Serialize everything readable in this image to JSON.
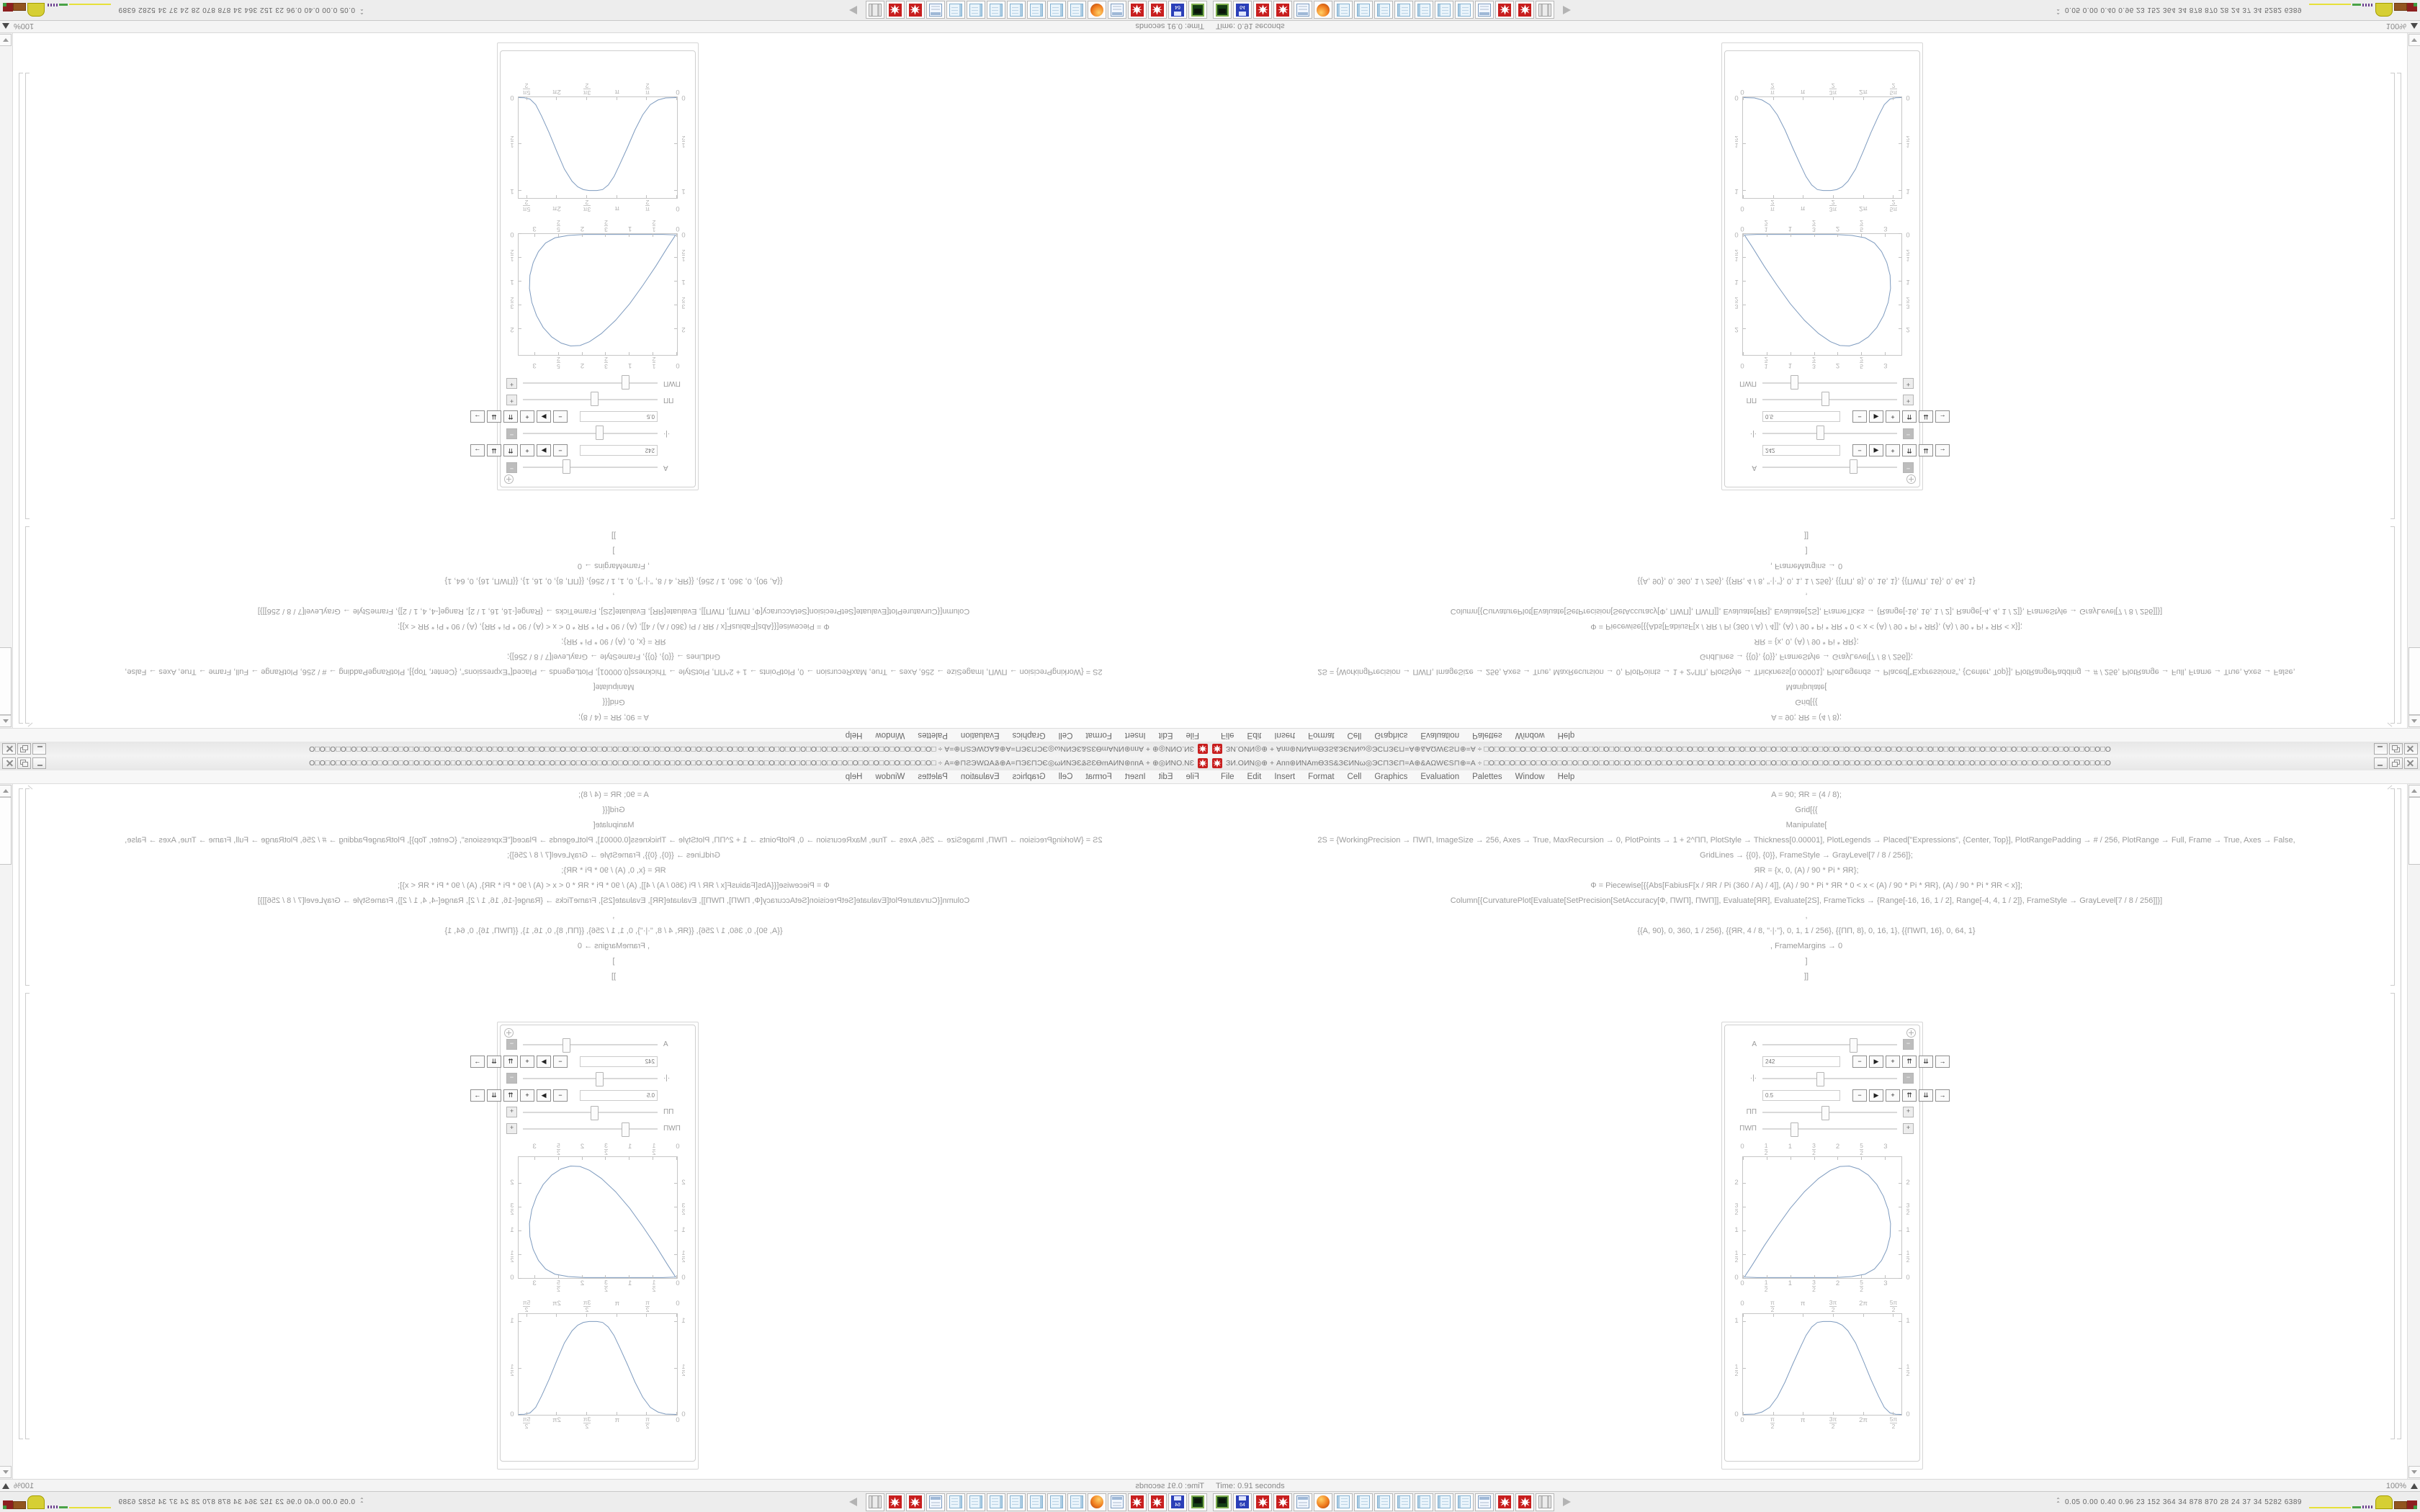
{
  "window": {
    "title": "ЗИ.ОИN◎⊕ + Апп⊛ИNАmѲЗS&ЗЄИNω◎ЭС⊓ЗЄ⊓=А⊕&АΩWЄS⊓⊕=А ÷ □O□O□O□O□O□O□O□O□O□O□O□O□O□O□O□O□O□O□O□O□O□O□O□O□O□O□O□O□O□O□O□O□O□O□O□O□O□O□O□O□O□O□O□O□O□O□O□O□O□O□O□O□O□O□O□O□O□O□O□O",
    "buttons": [
      "minimize",
      "restore",
      "close"
    ]
  },
  "menu": {
    "items": [
      "File",
      "Edit",
      "Insert",
      "Format",
      "Cell",
      "Graphics",
      "Evaluation",
      "Palettes",
      "Window",
      "Help"
    ]
  },
  "notebook": {
    "code_lines": [
      "A = 90; ЯR = (4 / 8);",
      "Grid[{{",
      "Manipulate[",
      "2S = {WorkingPrecision → ПWП, ImageSize → 256, Axes → True, MaxRecursion → 0, PlotPoints → 1 + 2^ПП, PlotStyle → Thickness[0.00001], PlotLegends → Placed[\"Expressions\", {Center, Top}], PlotRangePadding → # / 256, PlotRange → Full, Frame → True, Axes → False,",
      "GridLines → {{0}, {0}}, FrameStyle → GrayLevel[7 / 8 / 256]};",
      "ЯR = {x, 0, (A) / 90 * Pi * ЯR};",
      "Ф = Piecewise[{{Abs[FabiusF[x / ЯR / Pi (360 / A) / 4]], (A) / 90 * Pi * ЯR * 0 < x < (A) / 90 * Pi * ЯR}, (A) / 90 * Pi * ЯR < x}];",
      "Column[{CurvaturePlot[Evaluate[SetPrecision[SetAccuracy[Ф, ПWП], ПWП]], Evaluate[ЯR], Evaluate[2S], FrameTicks → {Range[-16, 16, 1 / 2], Range[-4, 4, 1 / 2]}, FrameStyle → GrayLevel[7 / 8 / 256]]}]",
      ",",
      "{{A, 90}, 0, 360, 1 / 256}, {{ЯR, 4 / 8, \"·|·\"}, 0, 1, 1 / 256}, {{ПП, 8}, 0, 16, 1}, {{ПWП, 16}, 0, 64, 1}",
      ", FrameMargins → 0",
      "]",
      "]]"
    ]
  },
  "manipulate": {
    "menu_icon": "plus-circle-icon",
    "player_buttons": [
      "−",
      "▶",
      "+",
      "⇈",
      "⇊",
      "→"
    ],
    "sliders": [
      {
        "label": "A",
        "percent": 67,
        "expanded": true,
        "value": "242"
      },
      {
        "label": "·|·",
        "percent": 42,
        "expanded": true,
        "value": "0.5"
      },
      {
        "label": "ПП",
        "percent": 46,
        "expanded": false,
        "value": ""
      },
      {
        "label": "ПWП",
        "percent": 23,
        "expanded": false,
        "value": ""
      }
    ]
  },
  "chart_data": [
    {
      "type": "line",
      "closed": true,
      "x_range": [
        0,
        3.35
      ],
      "y_range": [
        0,
        2.55
      ],
      "x_ticks": [
        {
          "label": "0",
          "pos": 0.0
        },
        {
          "label": "1/2",
          "pos": 0.149
        },
        {
          "label": "1",
          "pos": 0.299
        },
        {
          "label": "3/2",
          "pos": 0.448
        },
        {
          "label": "2",
          "pos": 0.597
        },
        {
          "label": "5/2",
          "pos": 0.746
        },
        {
          "label": "3",
          "pos": 0.896
        }
      ],
      "y_ticks": [
        {
          "label": "0",
          "pos": 0.0
        },
        {
          "label": "1/2",
          "pos": 0.196
        },
        {
          "label": "1",
          "pos": 0.392
        },
        {
          "label": "3/2",
          "pos": 0.588
        },
        {
          "label": "2",
          "pos": 0.784
        }
      ],
      "curve": [
        [
          0.03,
          0.02
        ],
        [
          0.2,
          0.28
        ],
        [
          0.45,
          0.68
        ],
        [
          0.72,
          1.08
        ],
        [
          1.0,
          1.47
        ],
        [
          1.3,
          1.82
        ],
        [
          1.6,
          2.1
        ],
        [
          1.85,
          2.27
        ],
        [
          2.05,
          2.35
        ],
        [
          2.25,
          2.36
        ],
        [
          2.45,
          2.3
        ],
        [
          2.65,
          2.17
        ],
        [
          2.83,
          1.97
        ],
        [
          2.97,
          1.72
        ],
        [
          3.07,
          1.44
        ],
        [
          3.12,
          1.15
        ],
        [
          3.11,
          0.87
        ],
        [
          3.04,
          0.6
        ],
        [
          2.93,
          0.37
        ],
        [
          2.78,
          0.19
        ],
        [
          2.58,
          0.08
        ],
        [
          2.3,
          0.03
        ],
        [
          1.95,
          0.01
        ],
        [
          1.55,
          0.01
        ],
        [
          1.1,
          0.01
        ],
        [
          0.65,
          0.01
        ],
        [
          0.3,
          0.01
        ],
        [
          0.03,
          0.02
        ]
      ]
    },
    {
      "type": "line",
      "closed": false,
      "x_range": [
        0,
        8.3
      ],
      "y_range": [
        0,
        1.08
      ],
      "x_ticks": [
        {
          "label": "0",
          "pos": 0.0
        },
        {
          "label": "π/2",
          "pos": 0.189
        },
        {
          "label": "π",
          "pos": 0.379
        },
        {
          "label": "3π/2",
          "pos": 0.568
        },
        {
          "label": "2π",
          "pos": 0.757
        },
        {
          "label": "5π/2",
          "pos": 0.946
        }
      ],
      "y_ticks": [
        {
          "label": "0",
          "pos": 0.0
        },
        {
          "label": "1/2",
          "pos": 0.463
        },
        {
          "label": "1",
          "pos": 0.926
        }
      ],
      "curve": [
        [
          0,
          0.004
        ],
        [
          0.6,
          0.008
        ],
        [
          1.0,
          0.03
        ],
        [
          1.4,
          0.08
        ],
        [
          1.8,
          0.19
        ],
        [
          2.2,
          0.35
        ],
        [
          2.6,
          0.54
        ],
        [
          3.0,
          0.72
        ],
        [
          3.3,
          0.85
        ],
        [
          3.6,
          0.94
        ],
        [
          3.9,
          0.99
        ],
        [
          4.2,
          1.0
        ],
        [
          4.6,
          1.0
        ],
        [
          4.9,
          0.99
        ],
        [
          5.2,
          0.96
        ],
        [
          5.5,
          0.9
        ],
        [
          5.9,
          0.77
        ],
        [
          6.3,
          0.58
        ],
        [
          6.7,
          0.38
        ],
        [
          7.1,
          0.2
        ],
        [
          7.4,
          0.08
        ],
        [
          7.7,
          0.02
        ],
        [
          8.0,
          0.006
        ],
        [
          8.3,
          0.004
        ]
      ]
    }
  ],
  "colors": {
    "curve_stroke": "#7e9bbf",
    "spikey_red": "#c81e1e",
    "accent_gray": "#9a9a9a"
  },
  "status_bar": {
    "left": "Time: 0.91 seconds",
    "zoom": "100%"
  },
  "taskbar": {
    "floppy_label": "64",
    "items": [
      "terminal",
      "floppy",
      "spikey",
      "spikey",
      "calculator",
      "firefox",
      "notepad",
      "notepad",
      "notepad",
      "notepad",
      "notepad",
      "notepad",
      "notepad",
      "calculator",
      "spikey",
      "spikey",
      "scroll",
      "arrow"
    ],
    "tray": {
      "chevrons": "⌃",
      "text": "0.05 0.00 0.40 0.96  23  152 364  34  878 870  28  24  37  34  5282 6389"
    }
  }
}
